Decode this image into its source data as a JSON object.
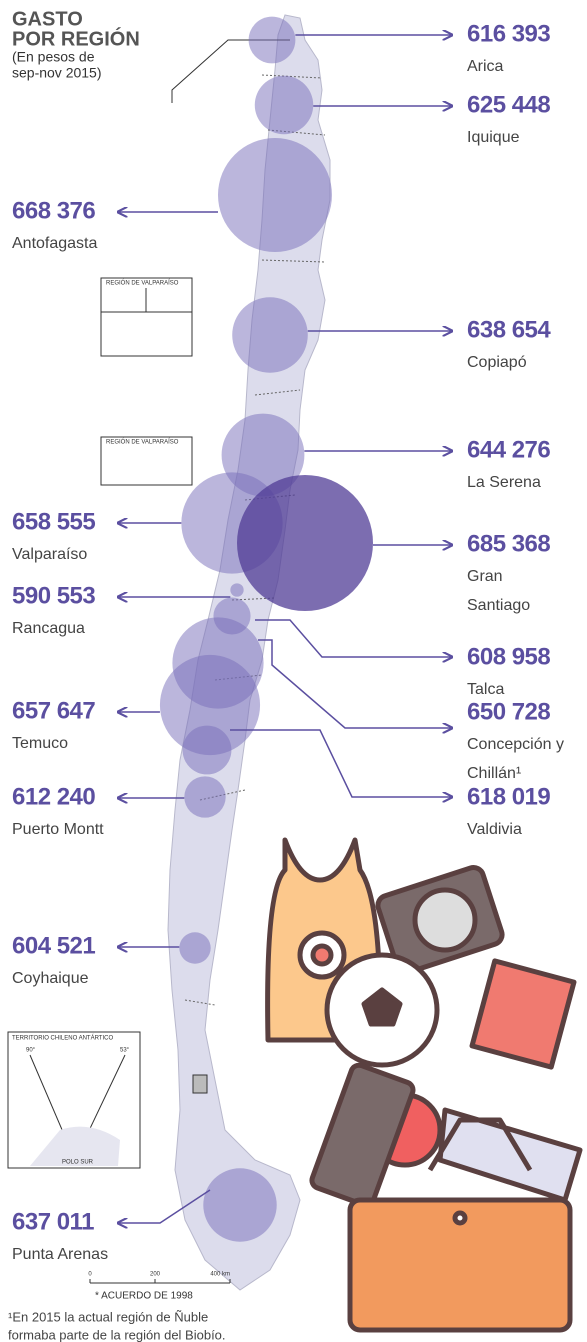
{
  "header": {
    "title_lines": [
      "GASTO",
      "POR REGIÓN"
    ],
    "subtitle_lines": [
      "(En pesos de",
      "sep-nov 2015)"
    ]
  },
  "regions": [
    {
      "value": 616393,
      "value_label": "616 393",
      "lines": [
        "Arica"
      ]
    },
    {
      "value": 625448,
      "value_label": "625 448",
      "lines": [
        "Iquique"
      ]
    },
    {
      "value": 668376,
      "value_label": "668 376",
      "lines": [
        "Antofagasta"
      ]
    },
    {
      "value": 638654,
      "value_label": "638 654",
      "lines": [
        "Copiapó"
      ]
    },
    {
      "value": 644276,
      "value_label": "644 276",
      "lines": [
        "La Serena"
      ]
    },
    {
      "value": 658555,
      "value_label": "658 555",
      "lines": [
        "Valparaíso"
      ]
    },
    {
      "value": 685368,
      "value_label": "685 368",
      "lines": [
        "Gran",
        "Santiago"
      ]
    },
    {
      "value": 590553,
      "value_label": "590 553",
      "lines": [
        "Rancagua"
      ]
    },
    {
      "value": 608958,
      "value_label": "608 958",
      "lines": [
        "Talca"
      ]
    },
    {
      "value": 650728,
      "value_label": "650 728",
      "lines": [
        "Concepción y",
        "Chillán¹"
      ]
    },
    {
      "value": 657647,
      "value_label": "657 647",
      "lines": [
        "Temuco"
      ]
    },
    {
      "value": 618019,
      "value_label": "618 019",
      "lines": [
        "Valdivia"
      ]
    },
    {
      "value": 612240,
      "value_label": "612 240",
      "lines": [
        "Puerto Montt"
      ]
    },
    {
      "value": 604521,
      "value_label": "604 521",
      "lines": [
        "Coyhaique"
      ]
    },
    {
      "value": 637011,
      "value_label": "637 011",
      "lines": [
        "Punta Arenas"
      ]
    }
  ],
  "insets": {
    "valparaiso_1": "REGIÓN DE VALPARAÍSO",
    "valparaiso_2": "REGIÓN DE VALPARAÍSO",
    "antarctic": "TERRITORIO CHILENO ANTÁRTICO",
    "angle_left": "90°",
    "angle_right": "53°",
    "pole": "POLO SUR"
  },
  "scale": {
    "ticks": [
      "0",
      "200",
      "400 km"
    ],
    "note": "* ACUERDO DE 1998"
  },
  "footnote_lines": [
    "¹En 2015 la actual región de Ñuble",
    "formaba parte de la región del Biobío."
  ]
}
